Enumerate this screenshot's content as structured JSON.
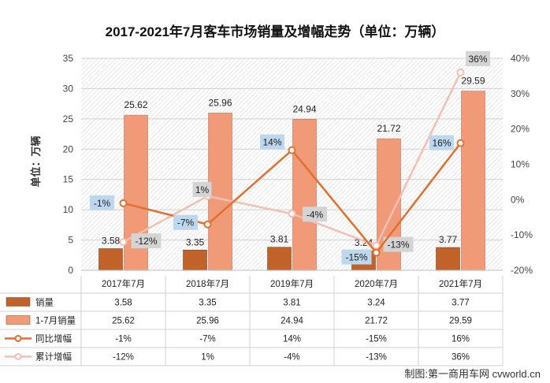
{
  "chart_data": {
    "type": "bar",
    "title": "2017-2021年7月客车市场销量及增幅走势（单位：万辆）",
    "ylabel": "单位：万辆",
    "ylim": [
      0,
      35
    ],
    "yticks": [
      0,
      5,
      10,
      15,
      20,
      25,
      30,
      35
    ],
    "y2lim": [
      -20,
      40
    ],
    "y2ticks": [
      "-20%",
      "-10%",
      "0%",
      "10%",
      "20%",
      "30%",
      "40%"
    ],
    "categories": [
      "2017年7月",
      "2018年7月",
      "2019年7月",
      "2020年7月",
      "2021年7月"
    ],
    "series": [
      {
        "name": "销量",
        "kind": "bar",
        "color": "#c0622a",
        "values": [
          3.58,
          3.35,
          3.81,
          3.24,
          3.77
        ],
        "labels": [
          "3.58",
          "3.35",
          "3.81",
          "3.24",
          "3.77"
        ]
      },
      {
        "name": "1-7月销量",
        "kind": "bar",
        "color": "#f09a78",
        "values": [
          25.62,
          25.96,
          24.94,
          21.72,
          29.59
        ],
        "labels": [
          "25.62",
          "25.96",
          "24.94",
          "21.72",
          "29.59"
        ]
      },
      {
        "name": "同比增幅",
        "kind": "line",
        "axis": "right",
        "color": "#e07030",
        "values": [
          -1,
          -7,
          14,
          -15,
          16
        ],
        "labels": [
          "-1%",
          "-7%",
          "14%",
          "-15%",
          "16%"
        ]
      },
      {
        "name": "累计增幅",
        "kind": "line",
        "axis": "right",
        "color": "#f5beb2",
        "values": [
          -12,
          1,
          -4,
          -13,
          36
        ],
        "labels": [
          "-12%",
          "1%",
          "-4%",
          "-13%",
          "36%"
        ]
      }
    ],
    "grid": true,
    "legend": "data-table"
  },
  "credit": "制图:第一商用车网 cvworld.cn",
  "colors": {
    "yoy_label_bg": "#bcd7ee",
    "cum_label_bg": "#d4d4d4",
    "plot_hatch": "#d8d8d8",
    "gridline": "#cfcfcf"
  }
}
